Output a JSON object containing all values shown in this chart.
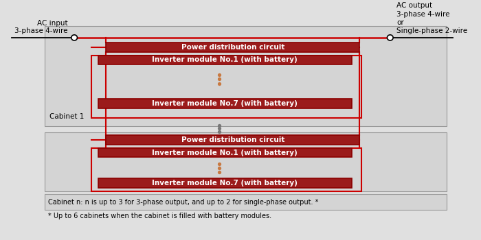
{
  "bg_color": "#e0e0e0",
  "cabinet_bg": "#d4d4d4",
  "cabinet_border": "#999999",
  "dark_red": "#8B0000",
  "red_box": "#9B1B1B",
  "line_color": "#CC0000",
  "ac_input_label": "AC input\n3-phase 4-wire",
  "ac_output_label": "AC output\n3-phase 4-wire\nor\nSingle-phase 2-wire",
  "power_dist": "Power distribution circuit",
  "inverter1": "Inverter module No.1 (with battery)",
  "inverter7": "Inverter module No.7 (with battery)",
  "cabinet1_label": "Cabinet 1",
  "footer1": "Cabinet n: n is up to 3 for 3-phase output, and up to 2 for single-phase output. *",
  "footer2": "* Up to 6 cabinets when the cabinet is filled with battery modules.",
  "dot_color": "#C87941",
  "dot_color_gray": "#787878"
}
